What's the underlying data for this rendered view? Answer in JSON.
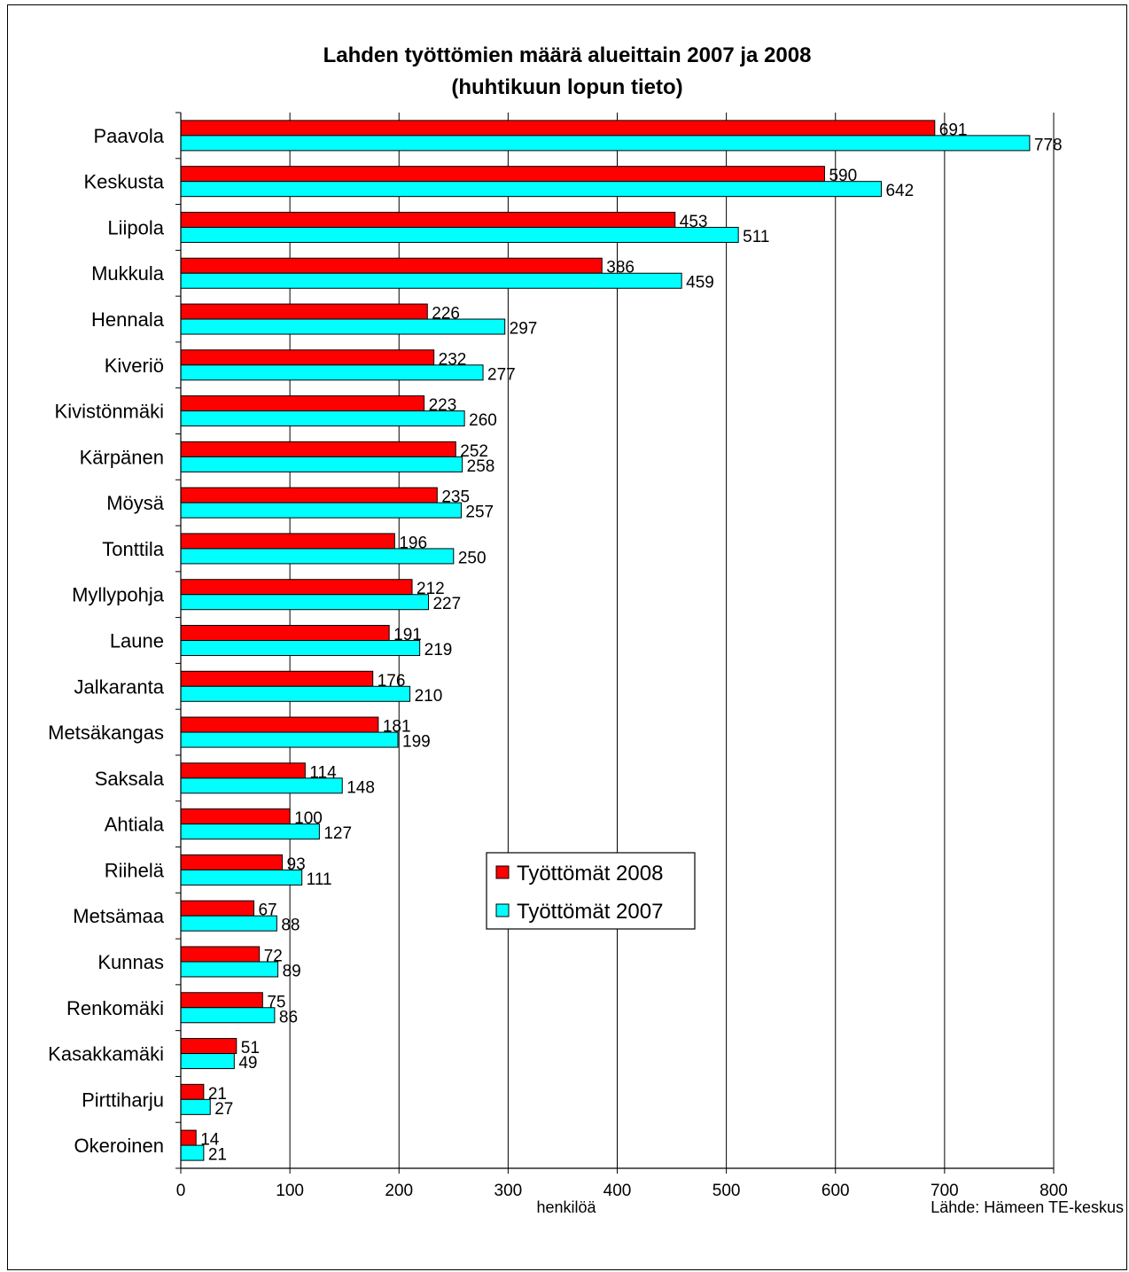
{
  "chart_data": {
    "type": "bar",
    "orientation": "horizontal",
    "title": "Lahden työttömien määrä alueittain 2007 ja 2008",
    "subtitle": "(huhtikuun lopun tieto)",
    "xlabel": "henkilöä",
    "source": "Lähde: Hämeen TE-keskus",
    "categories": [
      "Paavola",
      "Keskusta",
      "Liipola",
      "Mukkula",
      "Hennala",
      "Kiveriö",
      "Kivistönmäki",
      "Kärpänen",
      "Möysä",
      "Tonttila",
      "Myllypohja",
      "Laune",
      "Jalkaranta",
      "Metsäkangas",
      "Saksala",
      "Ahtiala",
      "Riihelä",
      "Metsämaa",
      "Kunnas",
      "Renkomäki",
      "Kasakkamäki",
      "Pirttiharju",
      "Okeroinen"
    ],
    "series": [
      {
        "name": "Työttömät 2008",
        "color": "#ff0000",
        "values": [
          691,
          590,
          453,
          386,
          226,
          232,
          223,
          252,
          235,
          196,
          212,
          191,
          176,
          181,
          114,
          100,
          93,
          67,
          72,
          75,
          51,
          21,
          14
        ]
      },
      {
        "name": "Työttömät 2007",
        "color": "#00ffff",
        "values": [
          778,
          642,
          511,
          459,
          297,
          277,
          260,
          258,
          257,
          250,
          227,
          219,
          210,
          199,
          148,
          127,
          111,
          88,
          89,
          86,
          49,
          27,
          21
        ]
      }
    ],
    "xlim": [
      0,
      800
    ],
    "xticks": [
      0,
      100,
      200,
      300,
      400,
      500,
      600,
      700,
      800
    ],
    "grid": true,
    "legend_position": "center-right"
  }
}
